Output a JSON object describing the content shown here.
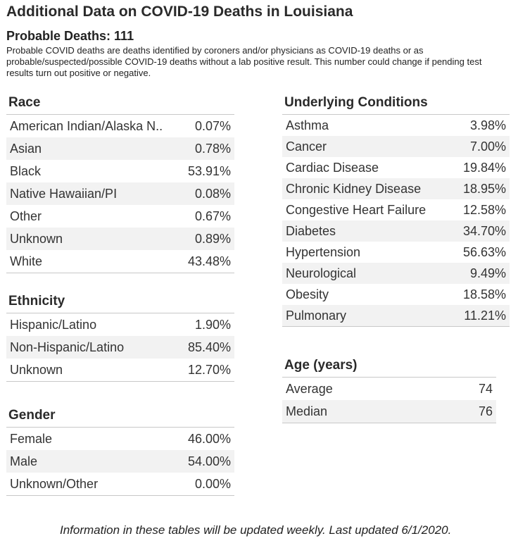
{
  "header": {
    "title": "Additional Data on COVID-19 Deaths in Louisiana",
    "probable_label": "Probable Deaths: 111",
    "note": "Probable COVID deaths are deaths identified by coroners and/or physicians as COVID-19 deaths or as probable/suspected/possible COVID-19 deaths without a lab positive result. This number could change if pending test results turn out positive or negative."
  },
  "race": {
    "title": "Race",
    "rows": [
      {
        "label": "American Indian/Alaska N..",
        "value": "0.07%"
      },
      {
        "label": "Asian",
        "value": "0.78%"
      },
      {
        "label": "Black",
        "value": "53.91%"
      },
      {
        "label": "Native Hawaiian/PI",
        "value": "0.08%"
      },
      {
        "label": "Other",
        "value": "0.67%"
      },
      {
        "label": "Unknown",
        "value": "0.89%"
      },
      {
        "label": "White",
        "value": "43.48%"
      }
    ]
  },
  "ethnicity": {
    "title": "Ethnicity",
    "rows": [
      {
        "label": "Hispanic/Latino",
        "value": "1.90%"
      },
      {
        "label": "Non-Hispanic/Latino",
        "value": "85.40%"
      },
      {
        "label": "Unknown",
        "value": "12.70%"
      }
    ]
  },
  "gender": {
    "title": "Gender",
    "rows": [
      {
        "label": "Female",
        "value": "46.00%"
      },
      {
        "label": "Male",
        "value": "54.00%"
      },
      {
        "label": "Unknown/Other",
        "value": "0.00%"
      }
    ]
  },
  "conditions": {
    "title": "Underlying Conditions",
    "rows": [
      {
        "label": "Asthma",
        "value": "3.98%"
      },
      {
        "label": "Cancer",
        "value": "7.00%"
      },
      {
        "label": "Cardiac Disease",
        "value": "19.84%"
      },
      {
        "label": "Chronic Kidney Disease",
        "value": "18.95%"
      },
      {
        "label": "Congestive Heart Failure",
        "value": "12.58%"
      },
      {
        "label": "Diabetes",
        "value": "34.70%"
      },
      {
        "label": "Hypertension",
        "value": "56.63%"
      },
      {
        "label": "Neurological",
        "value": "9.49%"
      },
      {
        "label": "Obesity",
        "value": "18.58%"
      },
      {
        "label": "Pulmonary",
        "value": "11.21%"
      }
    ]
  },
  "age": {
    "title": "Age (years)",
    "rows": [
      {
        "label": "Average",
        "value": "74"
      },
      {
        "label": "Median",
        "value": "76"
      }
    ]
  },
  "footer": {
    "text": "Information in these tables will be updated weekly. Last updated 6/1/2020."
  }
}
